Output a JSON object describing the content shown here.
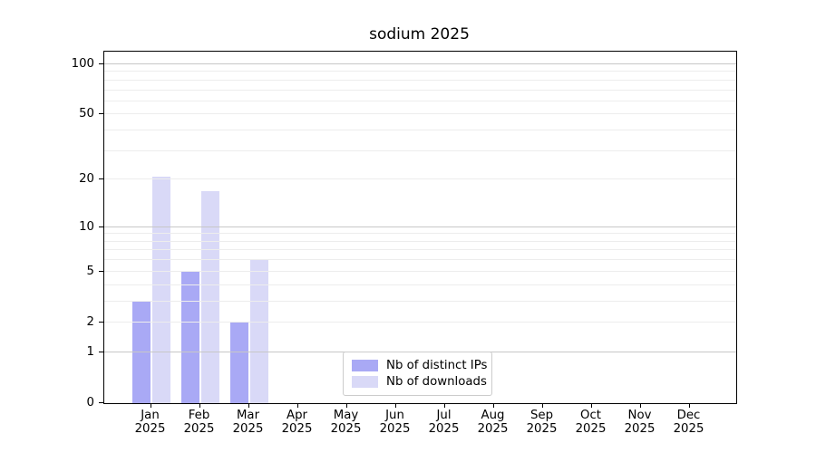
{
  "chart_data": {
    "type": "bar",
    "title": "sodium 2025",
    "categories": [
      "Jan",
      "Feb",
      "Mar",
      "Apr",
      "May",
      "Jun",
      "Jul",
      "Aug",
      "Sep",
      "Oct",
      "Nov",
      "Dec"
    ],
    "year_label": "2025",
    "series": [
      {
        "name": "Nb of distinct IPs",
        "color": "#a9a9f5",
        "values": [
          3,
          5,
          2,
          0,
          0,
          0,
          0,
          0,
          0,
          0,
          0,
          0
        ]
      },
      {
        "name": "Nb of downloads",
        "color": "#d9d9f7",
        "values": [
          21,
          17,
          6,
          0,
          0,
          0,
          0,
          0,
          0,
          0,
          0,
          0
        ]
      }
    ],
    "y_axis": {
      "scale": "log1p",
      "range": [
        0,
        100
      ],
      "tick_labels": [
        0,
        1,
        2,
        5,
        10,
        20,
        50,
        100
      ],
      "major_gridlines": [
        1,
        10,
        100
      ],
      "minor_gridlines": [
        2,
        3,
        4,
        5,
        6,
        7,
        8,
        9,
        20,
        30,
        40,
        50,
        60,
        70,
        80,
        90
      ]
    },
    "legend": {
      "position": "lower center"
    },
    "grid": true
  }
}
